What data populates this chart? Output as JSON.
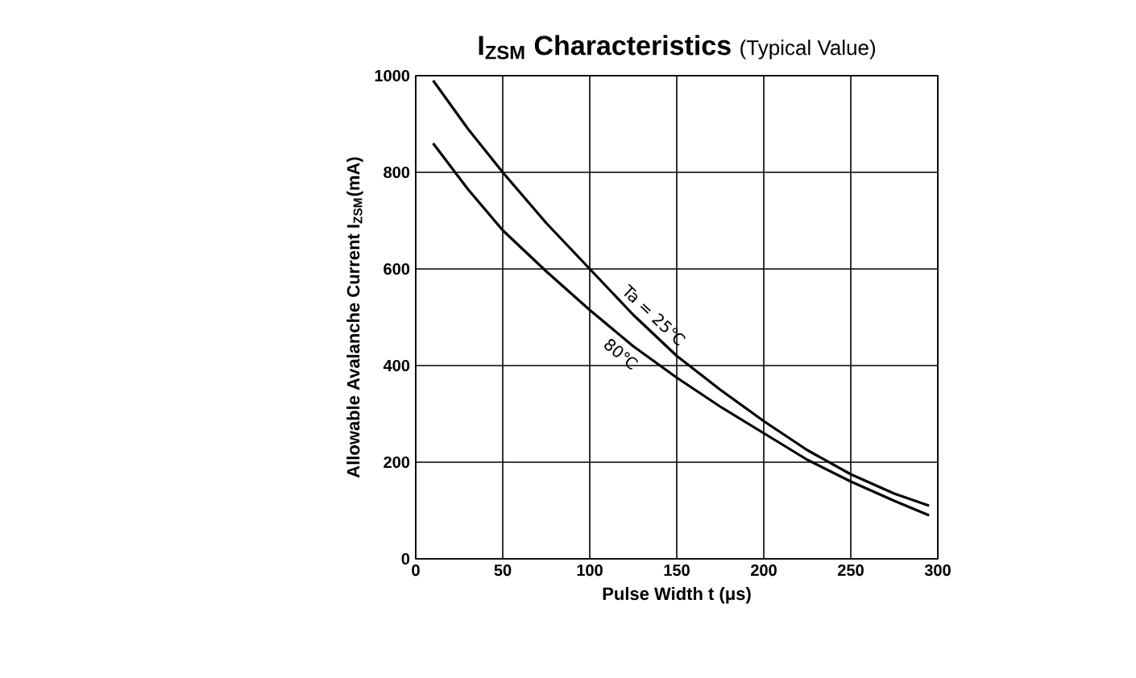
{
  "chart_data": {
    "type": "line",
    "title": "I$_{ZSM}$ Characteristics",
    "subtitle": "(Typical Value)",
    "xlabel": "Pulse Width  t (μs)",
    "ylabel": "Allowable Avalanche Current I$_{ZSM}$(mA)",
    "xlim": [
      0,
      300
    ],
    "ylim": [
      0,
      1000
    ],
    "xticks": [
      0,
      50,
      100,
      150,
      200,
      250,
      300
    ],
    "yticks": [
      0,
      200,
      400,
      600,
      800,
      1000
    ],
    "grid": true,
    "marker": "none",
    "line_style": "solid",
    "series": [
      {
        "name": "Ta = 25℃",
        "color": "#000000",
        "x": [
          10,
          30,
          50,
          75,
          100,
          125,
          150,
          175,
          200,
          225,
          250,
          275,
          295
        ],
        "values": [
          990,
          890,
          800,
          695,
          600,
          505,
          420,
          350,
          285,
          225,
          175,
          135,
          110
        ]
      },
      {
        "name": "80℃",
        "color": "#000000",
        "x": [
          10,
          30,
          50,
          75,
          100,
          125,
          150,
          175,
          200,
          225,
          250,
          275,
          295
        ],
        "values": [
          860,
          765,
          680,
          595,
          515,
          440,
          375,
          315,
          260,
          205,
          160,
          120,
          90
        ]
      }
    ]
  }
}
